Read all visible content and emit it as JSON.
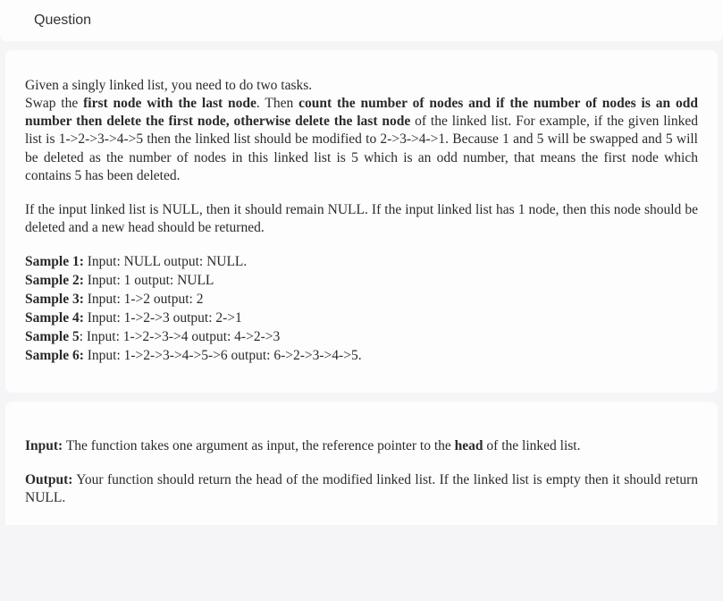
{
  "header": {
    "title": "Question"
  },
  "body": {
    "line1": "Given a singly linked list, you need to do two tasks.",
    "line2a": "Swap the ",
    "line2b": "first node with the last node",
    "line2c": ". Then ",
    "line2d": "count the number of nodes and if the number of nodes is an odd number then delete the first node, otherwise delete the last node",
    "line2e": " of the linked list. For example, if the given linked list is 1->2->3->4->5 then the linked list should be modified to 2->3->4->1. Because 1 and 5 will be swapped and 5 will be deleted as the number of nodes in this linked list is 5 which is an odd number, that means the first node which contains 5 has been deleted.",
    "line3": "If the input linked list is NULL, then it should remain NULL. If the input linked list has 1 node, then this node should be deleted and a new head should be returned.",
    "samples": [
      {
        "label": "Sample 1:",
        "rest": " Input: NULL   output: NULL."
      },
      {
        "label": "Sample 2:",
        "rest": " Input: 1   output: NULL"
      },
      {
        "label": "Sample 3:",
        "rest": " Input: 1->2   output: 2"
      },
      {
        "label": "Sample 4:",
        "rest": " Input: 1->2->3   output: 2->1"
      },
      {
        "label": "Sample 5",
        "rest": ": Input: 1->2->3->4   output: 4->2->3"
      },
      {
        "label": "Sample 6:",
        "rest": " Input: 1->2->3->4->5->6   output: 6->2->3->4->5."
      }
    ]
  },
  "io": {
    "input_label": "Input:",
    "input_text": " The function takes one argument as input, the reference pointer to the ",
    "input_bold": "head",
    "input_tail": " of the linked list.",
    "output_label": "Output:",
    "output_text": " Your function should return the head of the modified linked list.  If the linked list is empty then it should return NULL."
  }
}
